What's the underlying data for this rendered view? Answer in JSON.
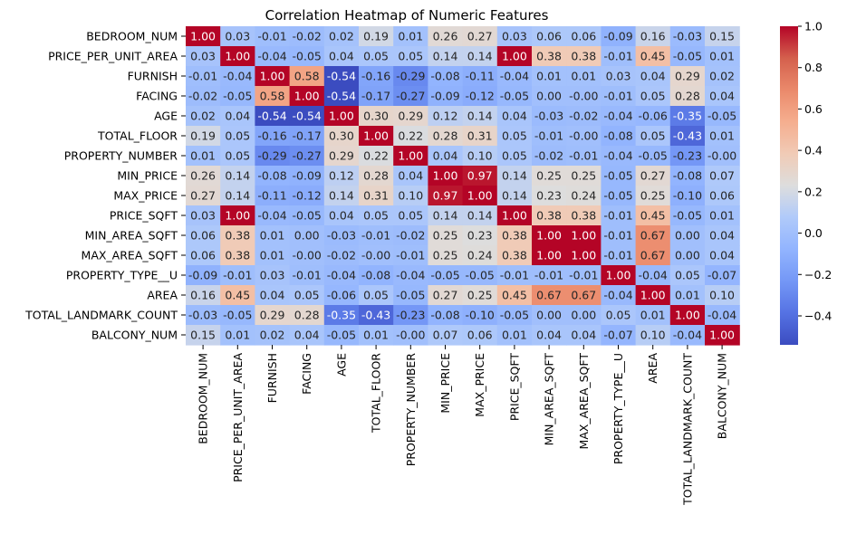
{
  "chart_data": {
    "type": "heatmap",
    "title": "Correlation Heatmap of Numeric Features",
    "labels": [
      "BEDROOM_NUM",
      "PRICE_PER_UNIT_AREA",
      "FURNISH",
      "FACING",
      "AGE",
      "TOTAL_FLOOR",
      "PROPERTY_NUMBER",
      "MIN_PRICE",
      "MAX_PRICE",
      "PRICE_SQFT",
      "MIN_AREA_SQFT",
      "MAX_AREA_SQFT",
      "PROPERTY_TYPE__U",
      "AREA",
      "TOTAL_LANDMARK_COUNT",
      "BALCONY_NUM"
    ],
    "matrix": [
      [
        1.0,
        0.03,
        -0.01,
        -0.02,
        0.02,
        0.19,
        0.01,
        0.26,
        0.27,
        0.03,
        0.06,
        0.06,
        -0.09,
        0.16,
        -0.03,
        0.15
      ],
      [
        0.03,
        1.0,
        -0.04,
        -0.05,
        0.04,
        0.05,
        0.05,
        0.14,
        0.14,
        1.0,
        0.38,
        0.38,
        -0.01,
        0.45,
        -0.05,
        0.01
      ],
      [
        -0.01,
        -0.04,
        1.0,
        0.58,
        -0.54,
        -0.16,
        -0.29,
        -0.08,
        -0.11,
        -0.04,
        0.01,
        0.01,
        0.03,
        0.04,
        0.29,
        0.02
      ],
      [
        -0.02,
        -0.05,
        0.58,
        1.0,
        -0.54,
        -0.17,
        -0.27,
        -0.09,
        -0.12,
        -0.05,
        0.0,
        -0.0,
        -0.01,
        0.05,
        0.28,
        0.04
      ],
      [
        0.02,
        0.04,
        -0.54,
        -0.54,
        1.0,
        0.3,
        0.29,
        0.12,
        0.14,
        0.04,
        -0.03,
        -0.02,
        -0.04,
        -0.06,
        -0.35,
        -0.05
      ],
      [
        0.19,
        0.05,
        -0.16,
        -0.17,
        0.3,
        1.0,
        0.22,
        0.28,
        0.31,
        0.05,
        -0.01,
        -0.0,
        -0.08,
        0.05,
        -0.43,
        0.01
      ],
      [
        0.01,
        0.05,
        -0.29,
        -0.27,
        0.29,
        0.22,
        1.0,
        0.04,
        0.1,
        0.05,
        -0.02,
        -0.01,
        -0.04,
        -0.05,
        -0.23,
        -0.0
      ],
      [
        0.26,
        0.14,
        -0.08,
        -0.09,
        0.12,
        0.28,
        0.04,
        1.0,
        0.97,
        0.14,
        0.25,
        0.25,
        -0.05,
        0.27,
        -0.08,
        0.07
      ],
      [
        0.27,
        0.14,
        -0.11,
        -0.12,
        0.14,
        0.31,
        0.1,
        0.97,
        1.0,
        0.14,
        0.23,
        0.24,
        -0.05,
        0.25,
        -0.1,
        0.06
      ],
      [
        0.03,
        1.0,
        -0.04,
        -0.05,
        0.04,
        0.05,
        0.05,
        0.14,
        0.14,
        1.0,
        0.38,
        0.38,
        -0.01,
        0.45,
        -0.05,
        0.01
      ],
      [
        0.06,
        0.38,
        0.01,
        0.0,
        -0.03,
        -0.01,
        -0.02,
        0.25,
        0.23,
        0.38,
        1.0,
        1.0,
        -0.01,
        0.67,
        0.0,
        0.04
      ],
      [
        0.06,
        0.38,
        0.01,
        -0.0,
        -0.02,
        -0.0,
        -0.01,
        0.25,
        0.24,
        0.38,
        1.0,
        1.0,
        -0.01,
        0.67,
        0.0,
        0.04
      ],
      [
        -0.09,
        -0.01,
        0.03,
        -0.01,
        -0.04,
        -0.08,
        -0.04,
        -0.05,
        -0.05,
        -0.01,
        -0.01,
        -0.01,
        1.0,
        -0.04,
        0.05,
        -0.07
      ],
      [
        0.16,
        0.45,
        0.04,
        0.05,
        -0.06,
        0.05,
        -0.05,
        0.27,
        0.25,
        0.45,
        0.67,
        0.67,
        -0.04,
        1.0,
        0.01,
        0.1
      ],
      [
        -0.03,
        -0.05,
        0.29,
        0.28,
        -0.35,
        -0.43,
        -0.23,
        -0.08,
        -0.1,
        -0.05,
        0.0,
        0.0,
        0.05,
        0.01,
        1.0,
        -0.04
      ],
      [
        0.15,
        0.01,
        0.02,
        0.04,
        -0.05,
        0.01,
        -0.0,
        0.07,
        0.06,
        0.01,
        0.04,
        0.04,
        -0.07,
        0.1,
        -0.04,
        1.0
      ]
    ],
    "colormap": "coolwarm",
    "vmin": -0.54,
    "vmax": 1.0,
    "annotation_format": "2 decimals",
    "colorbar_ticks": [
      "1.0",
      "0.8",
      "0.6",
      "0.4",
      "0.2",
      "0.0",
      "−0.2",
      "−0.4"
    ],
    "colorbar_tick_values": [
      1.0,
      0.8,
      0.6,
      0.4,
      0.2,
      0.0,
      -0.2,
      -0.4
    ],
    "grid": false
  }
}
